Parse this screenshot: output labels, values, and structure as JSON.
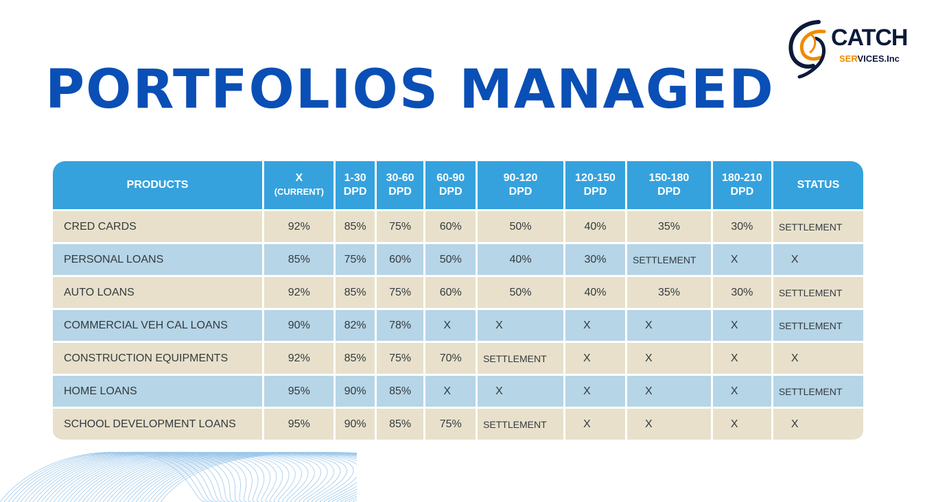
{
  "title": "PORTFOLIOS MANAGED",
  "logo": {
    "brand": "CATCH",
    "sub_highlight": "SER",
    "sub_rest": "VICES.Inc"
  },
  "colors": {
    "title": "#0a4fb5",
    "header": "#35a2dd",
    "row_tan": "#e8e0ca",
    "row_blue": "#b6d5e6",
    "logo_orange": "#f08a00"
  },
  "table": {
    "headers": [
      {
        "line1": "PRODUCTS",
        "line2": ""
      },
      {
        "line1": "X",
        "line2": "(CURRENT)"
      },
      {
        "line1": "1-30",
        "line2": "DPD"
      },
      {
        "line1": "30-60",
        "line2": "DPD"
      },
      {
        "line1": "60-90",
        "line2": "DPD"
      },
      {
        "line1": "90-120",
        "line2": "DPD"
      },
      {
        "line1": "120-150",
        "line2": "DPD"
      },
      {
        "line1": "150-180",
        "line2": "DPD"
      },
      {
        "line1": "180-210",
        "line2": "DPD"
      },
      {
        "line1": "STATUS",
        "line2": ""
      }
    ],
    "rows": [
      [
        "CRED    CARDS",
        "92%",
        "85%",
        "75%",
        "60%",
        "50%",
        "40%",
        "35%",
        "30%",
        "SETTLEMENT"
      ],
      [
        "PERSONAL LOANS",
        "85%",
        "75%",
        "60%",
        "50%",
        "40%",
        "30%",
        "SETTLEMENT",
        "X",
        "X"
      ],
      [
        "AUTO LOANS",
        "92%",
        "85%",
        "75%",
        "60%",
        "50%",
        "40%",
        "35%",
        "30%",
        "SETTLEMENT"
      ],
      [
        "COMMERCIAL VEH CAL LOANS",
        "90%",
        "82%",
        "78%",
        "X",
        "X",
        "X",
        "X",
        "X",
        "SETTLEMENT"
      ],
      [
        "CONSTRUCTION EQUIPMENTS",
        "92%",
        "85%",
        "75%",
        "70%",
        "SETTLEMENT",
        "X",
        "X",
        "X",
        "X"
      ],
      [
        "HOME LOANS",
        "95%",
        "90%",
        "85%",
        "X",
        "X",
        "X",
        "X",
        "X",
        "SETTLEMENT"
      ],
      [
        "SCHOOL DEVELOPMENT LOANS",
        "95%",
        "90%",
        "85%",
        "75%",
        "SETTLEMENT",
        "X",
        "X",
        "X",
        "X"
      ]
    ]
  }
}
